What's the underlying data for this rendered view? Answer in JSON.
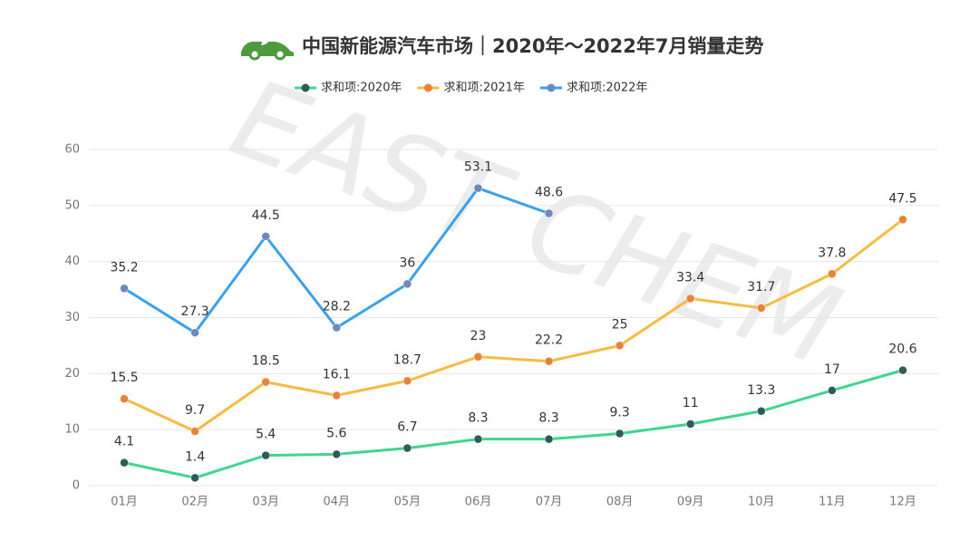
{
  "chart_data": {
    "type": "line",
    "title": "中国新能源汽车市场｜2020年～2022年7月销量走势",
    "watermark": "EAST CHEM",
    "categories": [
      "01月",
      "02月",
      "03月",
      "04月",
      "05月",
      "06月",
      "07月",
      "08月",
      "09月",
      "10月",
      "11月",
      "12月"
    ],
    "series": [
      {
        "name": "求和项:2020年",
        "color": "#3fd68f",
        "marker_color": "#2e5d58",
        "values": [
          4.1,
          1.4,
          5.4,
          5.6,
          6.7,
          8.3,
          8.3,
          9.3,
          11,
          13.3,
          17,
          20.6
        ]
      },
      {
        "name": "求和项:2021年",
        "color": "#f6bb43",
        "marker_color": "#e8843a",
        "values": [
          15.5,
          9.7,
          18.5,
          16.1,
          18.7,
          23,
          22.2,
          25,
          33.4,
          31.7,
          37.8,
          47.5
        ]
      },
      {
        "name": "求和项:2022年",
        "color": "#3aa2ea",
        "marker_color": "#6f89b8",
        "values": [
          35.2,
          27.3,
          44.5,
          28.2,
          36,
          53.1,
          48.6,
          null,
          null,
          null,
          null,
          null
        ]
      }
    ],
    "ylim": [
      0,
      60
    ],
    "yticks": [
      0,
      10,
      20,
      30,
      40,
      50,
      60
    ],
    "grid": true
  }
}
